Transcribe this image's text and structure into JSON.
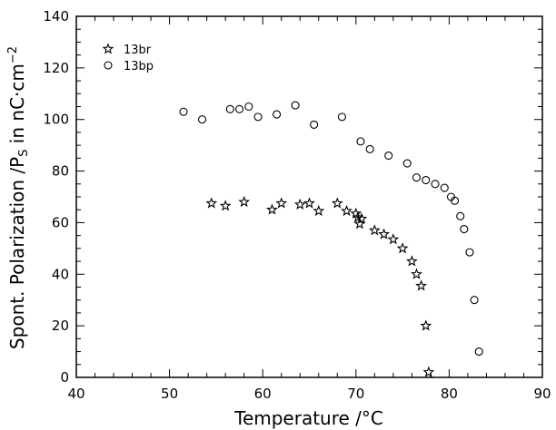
{
  "chart_data": {
    "type": "scatter",
    "title": "",
    "xlabel": "Temperature  /°C",
    "ylabel": "Spont. Polarization  /P",
    "ylabel_sub": "S",
    "ylabel_suffix": "  in  nC·cm",
    "ylabel_sup": "−2",
    "xlim": [
      40,
      90
    ],
    "ylim": [
      0,
      140
    ],
    "xticks": [
      40,
      50,
      60,
      70,
      80,
      90
    ],
    "yticks": [
      0,
      20,
      40,
      60,
      80,
      100,
      120,
      140
    ],
    "legend_position": "top-left",
    "series": [
      {
        "name": "13br",
        "marker": "star",
        "x": [
          54.5,
          56.0,
          58.0,
          61.0,
          62.0,
          64.0,
          65.0,
          66.0,
          68.0,
          69.0,
          70.0,
          70.2,
          70.4,
          70.6,
          72.0,
          73.0,
          74.0,
          75.0,
          76.0,
          76.5,
          77.0,
          77.5,
          77.8
        ],
        "y": [
          67.5,
          66.5,
          68.0,
          65.0,
          67.5,
          67.0,
          67.5,
          64.5,
          67.5,
          64.5,
          63.5,
          62.0,
          59.5,
          61.5,
          57.0,
          55.5,
          53.5,
          50.0,
          45.0,
          40.0,
          35.5,
          20.0,
          2.0
        ]
      },
      {
        "name": "13bp",
        "marker": "circle",
        "x": [
          51.5,
          53.5,
          56.5,
          57.5,
          58.5,
          59.5,
          61.5,
          63.5,
          65.5,
          68.5,
          70.5,
          71.5,
          73.5,
          75.5,
          76.5,
          77.5,
          78.5,
          79.5,
          80.2,
          80.6,
          81.2,
          81.6,
          82.2,
          82.7,
          83.2
        ],
        "y": [
          103.0,
          100.0,
          104.0,
          104.0,
          105.0,
          101.0,
          102.0,
          105.5,
          98.0,
          101.0,
          91.5,
          88.5,
          86.0,
          83.0,
          77.5,
          76.5,
          75.0,
          73.5,
          70.0,
          68.5,
          62.5,
          57.5,
          48.5,
          30.0,
          10.0
        ]
      }
    ]
  }
}
